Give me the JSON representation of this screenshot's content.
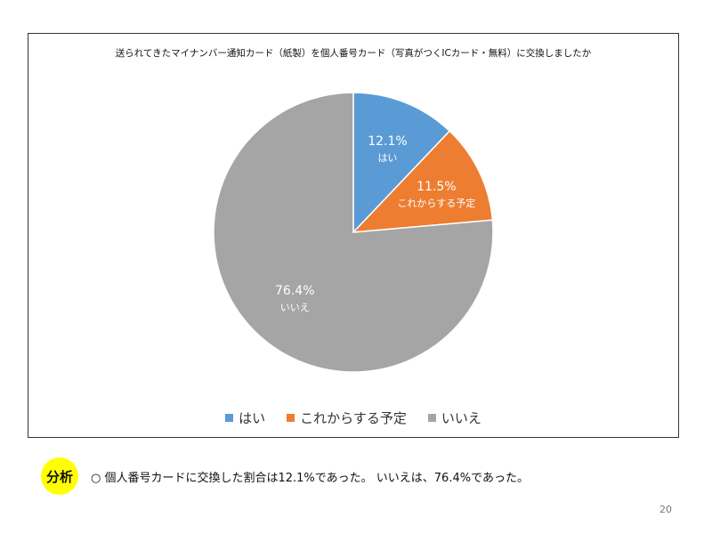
{
  "chart_data": {
    "type": "pie",
    "title": "送られてきたマイナンバー通知カード（紙製）を個人番号カード（写真がつくICカード・無料）に交換しましたか",
    "categories": [
      "はい",
      "これからする予定",
      "いいえ"
    ],
    "values": [
      12.1,
      11.5,
      76.4
    ],
    "value_labels": [
      "12.1%",
      "11.5%",
      "76.4%"
    ],
    "colors": [
      "#5b9bd5",
      "#ed7d31",
      "#a5a5a5"
    ],
    "legend_position": "bottom",
    "start_angle": "12 o'clock, clockwise"
  },
  "analysis": {
    "badge": "分析",
    "text": "○ 個人番号カードに交換した割合は12.1%であった。 いいえは、76.4%であった。"
  },
  "page_number": "20"
}
